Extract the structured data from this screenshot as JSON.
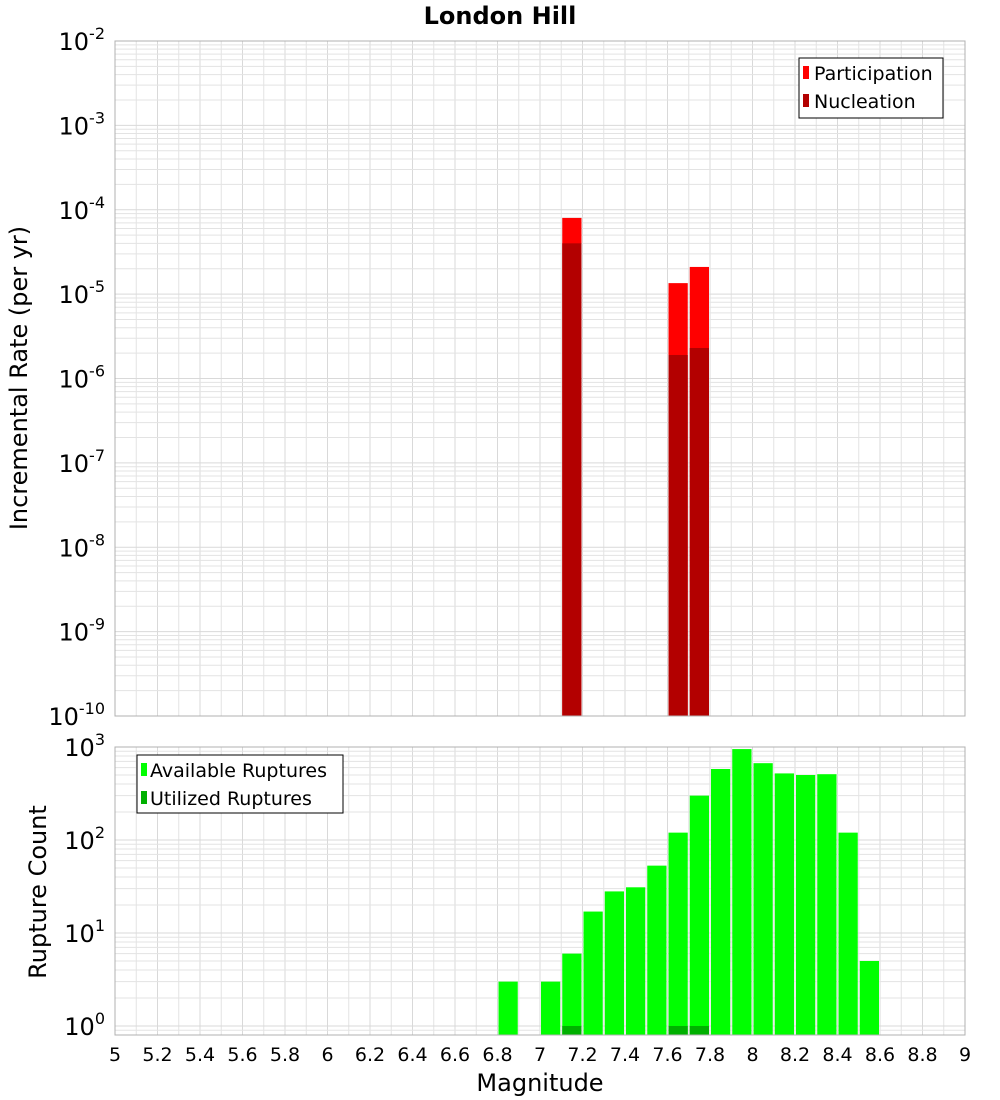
{
  "chart_data": [
    {
      "type": "bar",
      "title": "London Hill",
      "xlabel": "",
      "ylabel": "Incremental Rate (per yr)",
      "yscale": "log",
      "ylim": [
        1e-10,
        0.01
      ],
      "y_tick_base": "10",
      "y_tick_exponents": [
        "-10",
        "-9",
        "-8",
        "-7",
        "-6",
        "-5",
        "-4",
        "-3",
        "-2"
      ],
      "xlim": [
        5,
        9
      ],
      "bar_width": 0.1,
      "grid": true,
      "legend_position": "top-right",
      "series": [
        {
          "name": "Participation",
          "color": "#ff0000",
          "points": [
            {
              "x": 7.15,
              "y": 8e-05
            },
            {
              "x": 7.65,
              "y": 1.35e-05
            },
            {
              "x": 7.75,
              "y": 2.1e-05
            }
          ]
        },
        {
          "name": "Nucleation",
          "color": "#b30000",
          "points": [
            {
              "x": 7.15,
              "y": 4e-05
            },
            {
              "x": 7.65,
              "y": 1.9e-06
            },
            {
              "x": 7.75,
              "y": 2.3e-06
            }
          ]
        }
      ]
    },
    {
      "type": "bar",
      "xlabel": "Magnitude",
      "ylabel": "Rupture Count",
      "yscale": "log",
      "ylim": [
        0.8,
        1000
      ],
      "y_tick_base": "10",
      "y_tick_exponents": [
        "0",
        "1",
        "2",
        "3"
      ],
      "xlim": [
        5,
        9
      ],
      "x_ticks": [
        "5",
        "5.2",
        "5.4",
        "5.6",
        "5.8",
        "6",
        "6.2",
        "6.4",
        "6.6",
        "6.8",
        "7",
        "7.2",
        "7.4",
        "7.6",
        "7.8",
        "8",
        "8.2",
        "8.4",
        "8.6",
        "8.8",
        "9"
      ],
      "bar_width": 0.1,
      "grid": true,
      "legend_position": "top-left",
      "series": [
        {
          "name": "Available Ruptures",
          "color": "#00ff00",
          "points": [
            {
              "x": 6.85,
              "y": 3
            },
            {
              "x": 7.05,
              "y": 3
            },
            {
              "x": 7.15,
              "y": 6
            },
            {
              "x": 7.25,
              "y": 17
            },
            {
              "x": 7.35,
              "y": 28
            },
            {
              "x": 7.45,
              "y": 31
            },
            {
              "x": 7.55,
              "y": 53
            },
            {
              "x": 7.65,
              "y": 120
            },
            {
              "x": 7.75,
              "y": 300
            },
            {
              "x": 7.85,
              "y": 580
            },
            {
              "x": 7.95,
              "y": 950
            },
            {
              "x": 8.05,
              "y": 670
            },
            {
              "x": 8.15,
              "y": 520
            },
            {
              "x": 8.25,
              "y": 500
            },
            {
              "x": 8.35,
              "y": 510
            },
            {
              "x": 8.45,
              "y": 120
            },
            {
              "x": 8.55,
              "y": 5
            }
          ]
        },
        {
          "name": "Utilized Ruptures",
          "color": "#00b000",
          "points": [
            {
              "x": 7.15,
              "y": 1
            },
            {
              "x": 7.65,
              "y": 1
            },
            {
              "x": 7.75,
              "y": 1
            }
          ]
        }
      ]
    }
  ]
}
